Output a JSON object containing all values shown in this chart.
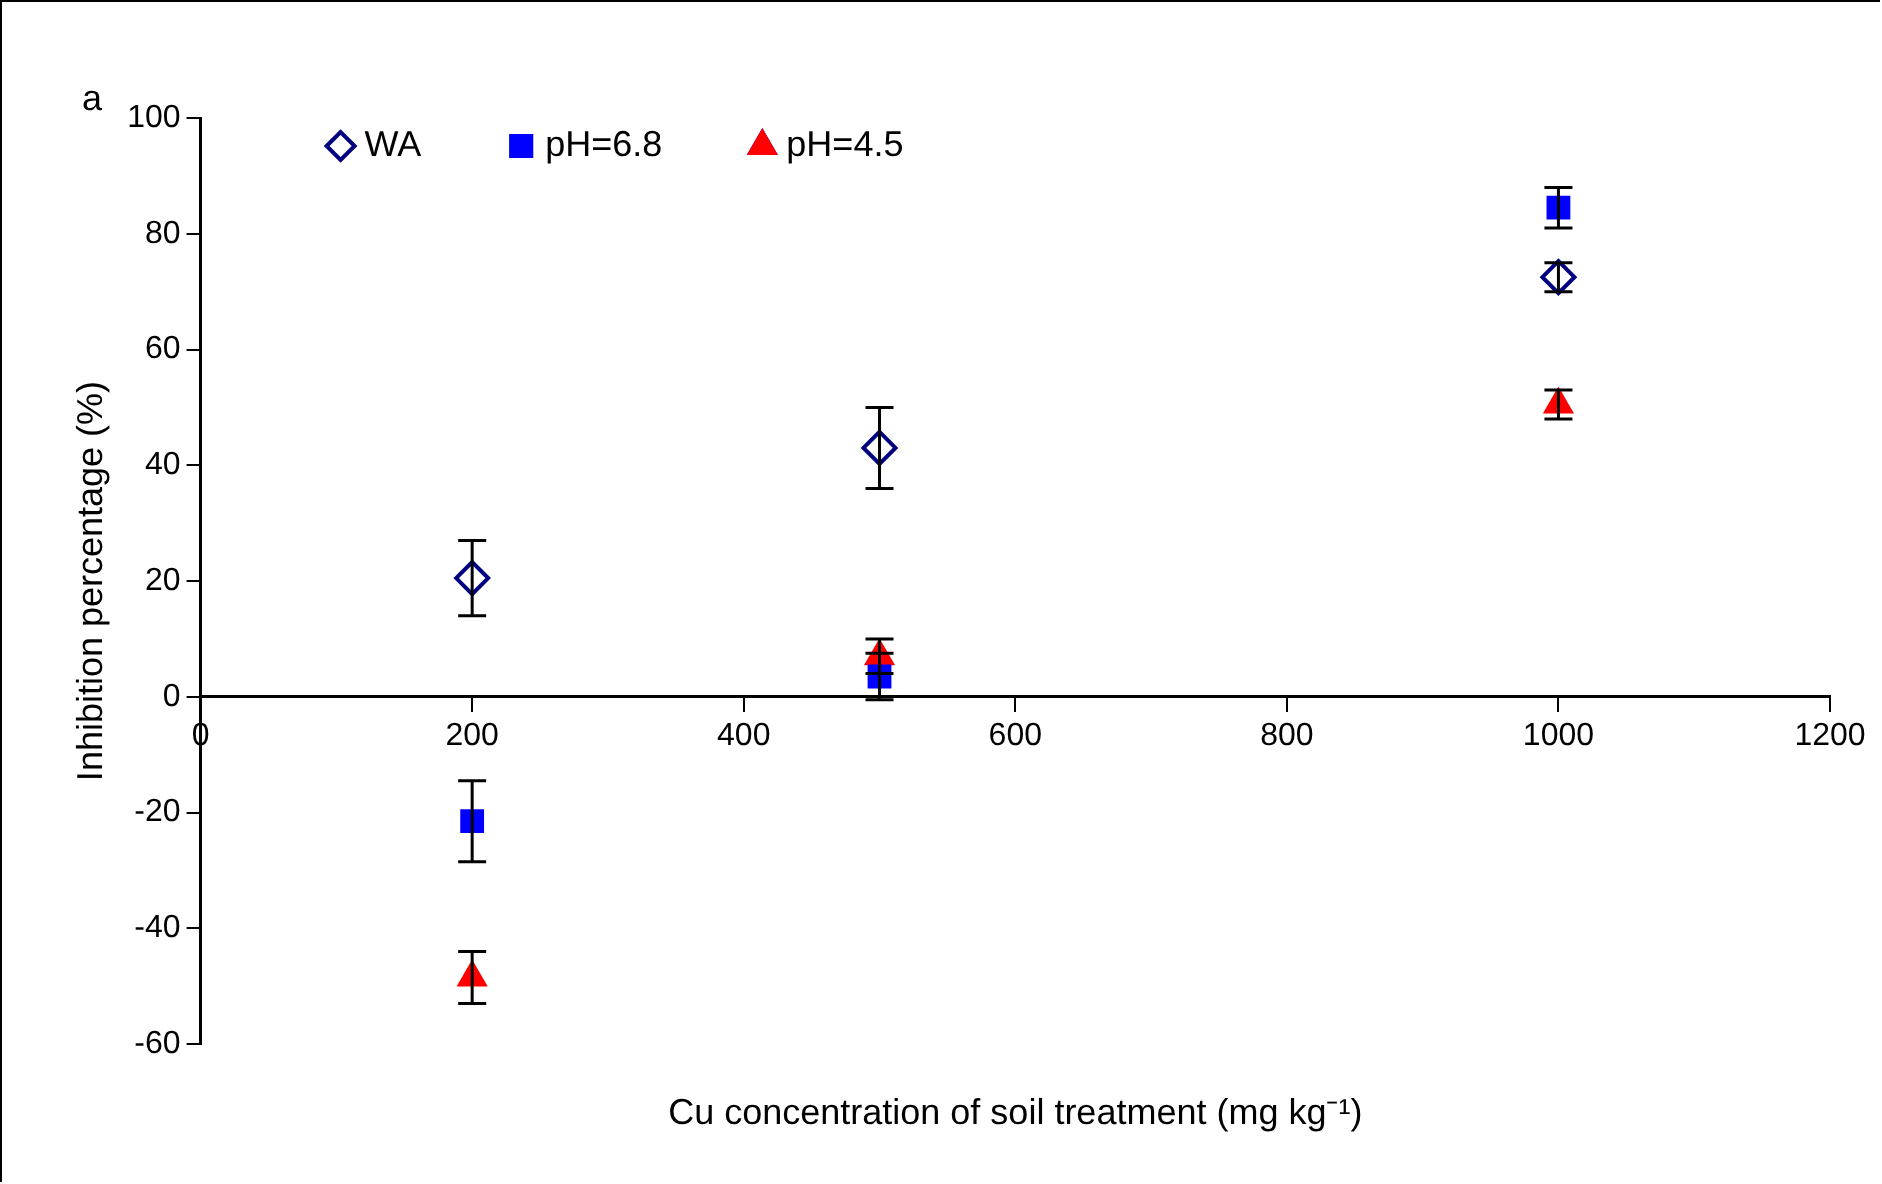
{
  "chart_data": {
    "type": "scatter",
    "xlabel": "Cu concentration of soil treatment (mg kg⁻¹)",
    "ylabel": "Inhibition percentage (%)",
    "annotations": [
      "a"
    ],
    "xlim": [
      0,
      1200
    ],
    "xticks": [
      0,
      200,
      400,
      600,
      800,
      1000,
      1200
    ],
    "ylim": [
      -60,
      100
    ],
    "yticks": [
      -60,
      -40,
      -20,
      0,
      20,
      40,
      60,
      80,
      100
    ],
    "grid": false,
    "legend": "top left",
    "series": [
      {
        "name": "WA",
        "color": "#000080",
        "marker": "diamond",
        "x": [
          200,
          500,
          1000
        ],
        "values": [
          20.5,
          43,
          72.5
        ],
        "errors": [
          6.5,
          7,
          2.5
        ]
      },
      {
        "name": "pH=6.8",
        "color": "#0000ff",
        "marker": "square",
        "x": [
          200,
          500,
          1000
        ],
        "values": [
          -21.5,
          3.5,
          84.5
        ],
        "errors": [
          7,
          4,
          3.5
        ]
      },
      {
        "name": "pH=4.5",
        "color": "#ff0000",
        "marker": "triangle",
        "x": [
          200,
          500,
          1000
        ],
        "values": [
          -48.5,
          7,
          50.5
        ],
        "errors": [
          4.5,
          3,
          2.5
        ]
      }
    ]
  }
}
